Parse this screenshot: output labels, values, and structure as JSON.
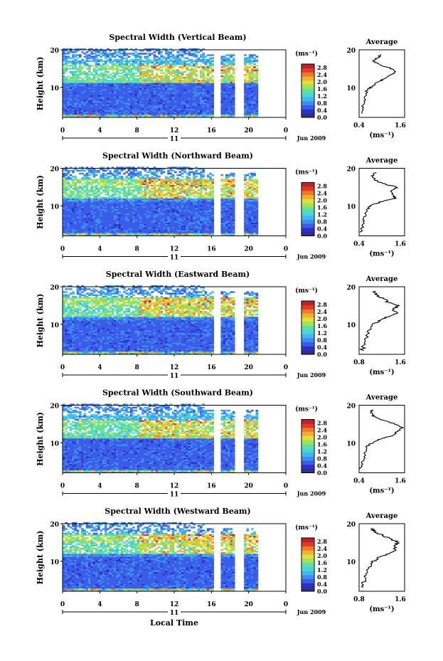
{
  "figure": {
    "xlabel": "Local Time",
    "date_label": "Jun 2009",
    "day_label": "11",
    "colorbar_unit": "(ms⁻¹)",
    "colorbar_ticks": [
      "2.8",
      "2.4",
      "2.0",
      "1.6",
      "1.2",
      "0.8",
      "0.4",
      "0.0"
    ],
    "ylabel": "Height (km)",
    "x_ticks": [
      "0",
      "4",
      "8",
      "12",
      "16",
      "20",
      "0"
    ],
    "y_ticks": [
      "20",
      "10"
    ],
    "avg_title": "Average",
    "avg_xlabel": "(ms⁻¹)",
    "colormap": [
      "#2f2f8f",
      "#2f2fd0",
      "#3a5ce8",
      "#3f8df0",
      "#42b8ee",
      "#48d6d6",
      "#5fe0a0",
      "#9fe35c",
      "#e0e03a",
      "#f0b030",
      "#ee7a2a",
      "#e03a2a",
      "#c0202a"
    ]
  },
  "chart_data": [
    {
      "type": "heatmap",
      "title": "Spectral Width (Vertical Beam)",
      "x_unit": "hours local time",
      "xlim": [
        0,
        24
      ],
      "ylim": [
        2,
        20
      ],
      "colorbar_range": [
        0.0,
        3.0
      ],
      "data_gaps_hours": [
        [
          16.3,
          16.9
        ],
        [
          18.5,
          19.5
        ],
        [
          21.0,
          24.0
        ]
      ],
      "average_profile": {
        "xlim": [
          0.4,
          1.6
        ],
        "x_ticks": [
          "0.4",
          "1.6"
        ],
        "height_km": [
          3,
          5,
          7,
          9,
          10,
          11,
          12,
          13,
          14,
          15,
          16,
          17,
          18,
          19
        ],
        "width": [
          0.45,
          0.5,
          0.55,
          0.6,
          0.7,
          0.85,
          1.0,
          1.2,
          1.35,
          1.25,
          0.95,
          0.75,
          0.9,
          1.0
        ]
      }
    },
    {
      "type": "heatmap",
      "title": "Spectral Width (Northward Beam)",
      "x_unit": "hours local time",
      "xlim": [
        0,
        24
      ],
      "ylim": [
        2,
        20
      ],
      "colorbar_range": [
        0.0,
        3.0
      ],
      "data_gaps_hours": [
        [
          16.3,
          16.9
        ],
        [
          18.5,
          19.5
        ],
        [
          21.0,
          24.0
        ]
      ],
      "average_profile": {
        "xlim": [
          0.4,
          1.6
        ],
        "x_ticks": [
          "0.4",
          "1.6"
        ],
        "height_km": [
          3,
          5,
          7,
          9,
          10,
          11,
          12,
          13,
          14,
          15,
          16,
          17,
          18,
          19
        ],
        "width": [
          0.45,
          0.5,
          0.55,
          0.6,
          0.7,
          0.95,
          1.35,
          1.3,
          1.25,
          1.4,
          1.0,
          0.8,
          0.75,
          0.85
        ]
      }
    },
    {
      "type": "heatmap",
      "title": "Spectral Width (Eastward Beam)",
      "x_unit": "hours local time",
      "xlim": [
        0,
        24
      ],
      "ylim": [
        2,
        20
      ],
      "colorbar_range": [
        0.0,
        3.0
      ],
      "data_gaps_hours": [
        [
          16.3,
          16.9
        ],
        [
          18.5,
          19.5
        ],
        [
          21.0,
          24.0
        ]
      ],
      "average_profile": {
        "xlim": [
          0.8,
          1.6
        ],
        "x_ticks": [
          "0.8",
          "1.6"
        ],
        "height_km": [
          3,
          5,
          7,
          9,
          10,
          11,
          12,
          13,
          14,
          15,
          16,
          17,
          18,
          19
        ],
        "width": [
          0.85,
          0.9,
          0.95,
          1.0,
          1.05,
          1.15,
          1.3,
          1.45,
          1.4,
          1.5,
          1.3,
          1.2,
          1.1,
          1.05
        ]
      }
    },
    {
      "type": "heatmap",
      "title": "Spectral Width (Southward Beam)",
      "x_unit": "hours local time",
      "xlim": [
        0,
        24
      ],
      "ylim": [
        2,
        20
      ],
      "colorbar_range": [
        0.0,
        3.0
      ],
      "data_gaps_hours": [
        [
          16.3,
          16.9
        ],
        [
          18.5,
          19.5
        ],
        [
          21.0,
          24.0
        ]
      ],
      "average_profile": {
        "xlim": [
          0.4,
          1.6
        ],
        "x_ticks": [
          "0.4",
          "1.6"
        ],
        "height_km": [
          3,
          5,
          7,
          9,
          10,
          11,
          12,
          13,
          14,
          15,
          16,
          17,
          18,
          19
        ],
        "width": [
          0.45,
          0.5,
          0.55,
          0.6,
          0.75,
          0.95,
          1.3,
          1.4,
          1.55,
          1.35,
          1.05,
          0.8,
          0.7,
          0.75
        ]
      }
    },
    {
      "type": "heatmap",
      "title": "Spectral Width (Westward Beam)",
      "x_unit": "hours local time",
      "xlim": [
        0,
        24
      ],
      "ylim": [
        2,
        20
      ],
      "colorbar_range": [
        0.0,
        3.0
      ],
      "data_gaps_hours": [
        [
          16.3,
          16.9
        ],
        [
          18.5,
          19.5
        ],
        [
          21.0,
          24.0
        ]
      ],
      "average_profile": {
        "xlim": [
          0.8,
          1.6
        ],
        "x_ticks": [
          "0.8",
          "1.6"
        ],
        "height_km": [
          3,
          5,
          7,
          9,
          10,
          11,
          12,
          13,
          14,
          15,
          16,
          17,
          18,
          19
        ],
        "width": [
          0.85,
          0.9,
          0.95,
          1.0,
          1.05,
          1.15,
          1.3,
          1.45,
          1.4,
          1.5,
          1.35,
          1.2,
          1.05,
          1.0
        ]
      }
    }
  ]
}
